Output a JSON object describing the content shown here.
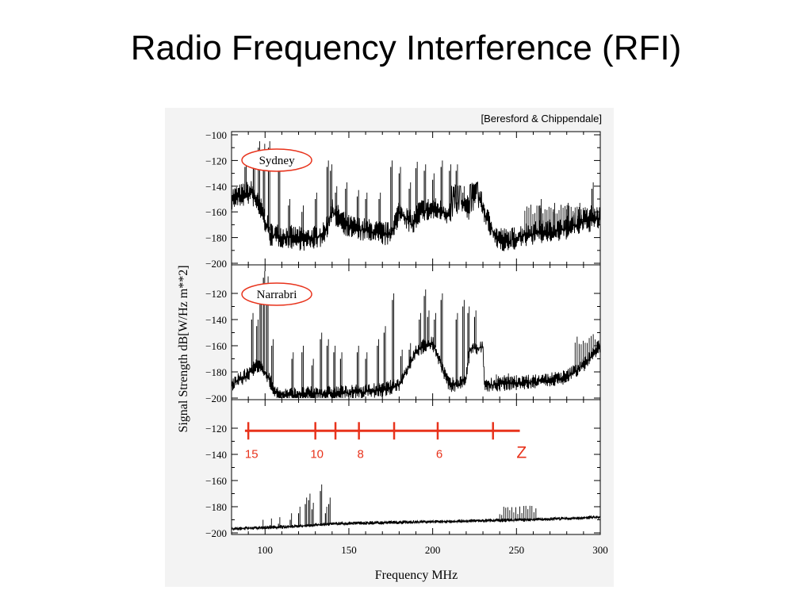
{
  "slide": {
    "title": "Radio Frequency Interference (RFI)"
  },
  "figure": {
    "credit": "[Beresford & Chippendale]"
  },
  "colors": {
    "trace": "#000000",
    "annotation": "#e8331c",
    "panel_bg": "#ffffff",
    "figure_bg": "#f3f3f3"
  },
  "chart_data": {
    "type": "line",
    "xlabel": "Frequency MHz",
    "ylabel": "Signal Strength dB[W/Hz m**2]",
    "xlim": [
      80,
      300
    ],
    "xticks": [
      100,
      150,
      200,
      250,
      300
    ],
    "grid": false,
    "panels": [
      {
        "label": "Sydney",
        "ylim": [
          -200,
          -100
        ],
        "yticks": [
          -100,
          -120,
          -140,
          -160,
          -180,
          -200
        ],
        "baseline": [
          [
            80,
            -150
          ],
          [
            92,
            -145
          ],
          [
            98,
            -160
          ],
          [
            103,
            -178
          ],
          [
            115,
            -180
          ],
          [
            125,
            -182
          ],
          [
            135,
            -178
          ],
          [
            140,
            -160
          ],
          [
            150,
            -172
          ],
          [
            165,
            -176
          ],
          [
            175,
            -178
          ],
          [
            180,
            -160
          ],
          [
            188,
            -170
          ],
          [
            192,
            -160
          ],
          [
            200,
            -158
          ],
          [
            210,
            -162
          ],
          [
            215,
            -152
          ],
          [
            225,
            -160
          ],
          [
            228,
            -150
          ],
          [
            232,
            -165
          ],
          [
            238,
            -180
          ],
          [
            245,
            -183
          ],
          [
            255,
            -178
          ],
          [
            265,
            -176
          ],
          [
            275,
            -175
          ],
          [
            290,
            -168
          ],
          [
            300,
            -165
          ]
        ],
        "noise": 10,
        "spikes": [
          [
            88,
            -125
          ],
          [
            93,
            -118
          ],
          [
            96,
            -110
          ],
          [
            99,
            -112
          ],
          [
            102,
            -110
          ],
          [
            108,
            -128
          ],
          [
            114,
            -155
          ],
          [
            122,
            -160
          ],
          [
            130,
            -150
          ],
          [
            137,
            -125
          ],
          [
            139,
            -128
          ],
          [
            142,
            -145
          ],
          [
            148,
            -142
          ],
          [
            155,
            -148
          ],
          [
            160,
            -150
          ],
          [
            168,
            -150
          ],
          [
            175,
            -125
          ],
          [
            180,
            -130
          ],
          [
            186,
            -142
          ],
          [
            190,
            -126
          ],
          [
            195,
            -128
          ],
          [
            200,
            -135
          ],
          [
            205,
            -125
          ],
          [
            210,
            -128
          ],
          [
            214,
            -128
          ],
          [
            218,
            -145
          ],
          [
            264,
            -155
          ],
          [
            272,
            -158
          ],
          [
            280,
            -158
          ],
          [
            287,
            -158
          ],
          [
            295,
            -142
          ]
        ],
        "steps": [
          [
            211,
            -140
          ],
          [
            217,
            -140
          ],
          [
            222,
            -138
          ],
          [
            227,
            -138
          ]
        ],
        "spike_bands": [
          [
            255,
            300,
            -158
          ]
        ]
      },
      {
        "label": "Narrabri",
        "ylim": [
          -200,
          -100
        ],
        "yticks": [
          -120,
          -140,
          -160,
          -180,
          -200
        ],
        "baseline": [
          [
            80,
            -190
          ],
          [
            90,
            -182
          ],
          [
            95,
            -175
          ],
          [
            100,
            -180
          ],
          [
            104,
            -190
          ],
          [
            108,
            -198
          ],
          [
            125,
            -197
          ],
          [
            150,
            -196
          ],
          [
            170,
            -194
          ],
          [
            180,
            -190
          ],
          [
            185,
            -178
          ],
          [
            190,
            -165
          ],
          [
            195,
            -160
          ],
          [
            200,
            -158
          ],
          [
            205,
            -175
          ],
          [
            210,
            -190
          ],
          [
            215,
            -190
          ],
          [
            220,
            -185
          ],
          [
            222,
            -162
          ],
          [
            230,
            -162
          ],
          [
            231,
            -190
          ],
          [
            260,
            -188
          ],
          [
            280,
            -184
          ],
          [
            290,
            -175
          ],
          [
            300,
            -160
          ]
        ],
        "noise": 6,
        "spikes": [
          [
            92,
            -140
          ],
          [
            95,
            -145
          ],
          [
            97,
            -125
          ],
          [
            99,
            -108
          ],
          [
            101,
            -112
          ],
          [
            104,
            -160
          ],
          [
            116,
            -170
          ],
          [
            122,
            -165
          ],
          [
            128,
            -175
          ],
          [
            133,
            -155
          ],
          [
            137,
            -160
          ],
          [
            141,
            -165
          ],
          [
            145,
            -170
          ],
          [
            155,
            -165
          ],
          [
            160,
            -170
          ],
          [
            167,
            -160
          ],
          [
            171,
            -150
          ],
          [
            176,
            -125
          ],
          [
            181,
            -168
          ],
          [
            186,
            -163
          ],
          [
            192,
            -140
          ],
          [
            195,
            -122
          ],
          [
            197,
            -138
          ],
          [
            201,
            -140
          ],
          [
            205,
            -125
          ],
          [
            214,
            -140
          ],
          [
            218,
            -130
          ],
          [
            221,
            -135
          ],
          [
            225,
            -138
          ]
        ],
        "steps": [
          [
            222,
            -162
          ],
          [
            230,
            -162
          ]
        ],
        "spike_bands": [
          [
            238,
            262,
            -185
          ],
          [
            285,
            300,
            -155
          ]
        ]
      },
      {
        "label": "",
        "ylim": [
          -200,
          -100
        ],
        "yticks": [
          -120,
          -140,
          -160,
          -180,
          -200
        ],
        "baseline": [
          [
            80,
            -197
          ],
          [
            120,
            -195
          ],
          [
            140,
            -193
          ],
          [
            180,
            -192
          ],
          [
            220,
            -191
          ],
          [
            260,
            -190
          ],
          [
            300,
            -188
          ]
        ],
        "noise": 1.5,
        "spikes": [
          [
            98,
            -195
          ],
          [
            103,
            -194
          ],
          [
            108,
            -193
          ],
          [
            115,
            -190
          ],
          [
            120,
            -185
          ],
          [
            124,
            -178
          ],
          [
            126,
            -175
          ],
          [
            128,
            -182
          ],
          [
            133,
            -168
          ],
          [
            136,
            -185
          ],
          [
            138,
            -178
          ]
        ],
        "steps": [],
        "spike_bands": [
          [
            240,
            262,
            -183
          ]
        ],
        "channel_overlay": {
          "y": -122,
          "x_range": [
            88,
            252
          ],
          "ticks": [
            90,
            130,
            142,
            156,
            177,
            203,
            236
          ],
          "labels": [
            {
              "text": "15",
              "x": 88
            },
            {
              "text": "10",
              "x": 127
            },
            {
              "text": "8",
              "x": 155
            },
            {
              "text": "6",
              "x": 202
            },
            {
              "text": "Z",
              "x": 250
            }
          ]
        }
      }
    ]
  }
}
